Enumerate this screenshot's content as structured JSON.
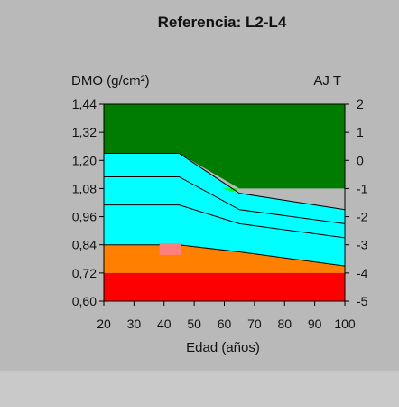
{
  "chart_data": {
    "type": "area",
    "title": "Referencia: L2-L4",
    "ylabel": "DMO (g/cm²)",
    "y2label": "AJ T",
    "xlabel": "Edad (años)",
    "x_ticks": [
      "20",
      "30",
      "40",
      "50",
      "60",
      "70",
      "80",
      "90",
      "100"
    ],
    "y_ticks": [
      "1,44",
      "1,32",
      "1,20",
      "1,08",
      "0,96",
      "0,84",
      "0,72",
      "0,60"
    ],
    "y2_ticks": [
      "2",
      "1",
      "0",
      "-1",
      "-2",
      "-3",
      "-4",
      "-5"
    ],
    "xlim": [
      20,
      100
    ],
    "ylim": [
      0.6,
      1.44
    ],
    "y2lim": [
      -5,
      2
    ],
    "x_age_points": [
      20,
      45,
      65,
      100
    ],
    "bands": [
      {
        "color": "#007d00",
        "lower": [
          1.23,
          1.23,
          1.08,
          1.08
        ],
        "upper": [
          1.44,
          1.44,
          1.44,
          1.44
        ]
      },
      {
        "color": "#00ffff",
        "lower": [
          1.13,
          1.13,
          1.06,
          0.99
        ],
        "upper": [
          1.23,
          1.23,
          1.06,
          0.99
        ]
      },
      {
        "color": "#00ff00",
        "lower": [
          0.96,
          0.96,
          1.08,
          1.08
        ],
        "upper": [
          1.08,
          1.08,
          1.08,
          1.08
        ]
      },
      {
        "color": "#00ffff",
        "lower": [
          1.01,
          1.01,
          0.93,
          0.87
        ],
        "upper": [
          1.13,
          1.13,
          1.06,
          0.99
        ]
      },
      {
        "color": "#ffff00",
        "lower": [
          0.84,
          0.84,
          0.84,
          0.84
        ],
        "upper": [
          0.96,
          0.96,
          0.93,
          0.87
        ]
      },
      {
        "color": "#00ffff",
        "lower": [
          0.84,
          0.84,
          0.81,
          0.75
        ],
        "upper": [
          1.01,
          1.01,
          0.93,
          0.87
        ]
      },
      {
        "color": "#ff8000",
        "lower": [
          0.72,
          0.72,
          0.72,
          0.72
        ],
        "upper": [
          0.84,
          0.84,
          0.81,
          0.75
        ]
      },
      {
        "color": "#ff0000",
        "lower": [
          0.6,
          0.6,
          0.6,
          0.6
        ],
        "upper": [
          0.72,
          0.72,
          0.72,
          0.72
        ]
      }
    ],
    "reference_lines": [
      {
        "y": [
          1.23,
          1.23,
          1.06,
          0.99
        ]
      },
      {
        "y": [
          1.13,
          1.13,
          0.99,
          0.93
        ]
      },
      {
        "y": [
          1.01,
          1.01,
          0.93,
          0.87
        ]
      },
      {
        "y": [
          0.84,
          0.84,
          0.81,
          0.75
        ]
      }
    ],
    "patient_marker": {
      "x": 40,
      "y": 0.82,
      "color": "#ff7f7f"
    },
    "grid": false
  }
}
